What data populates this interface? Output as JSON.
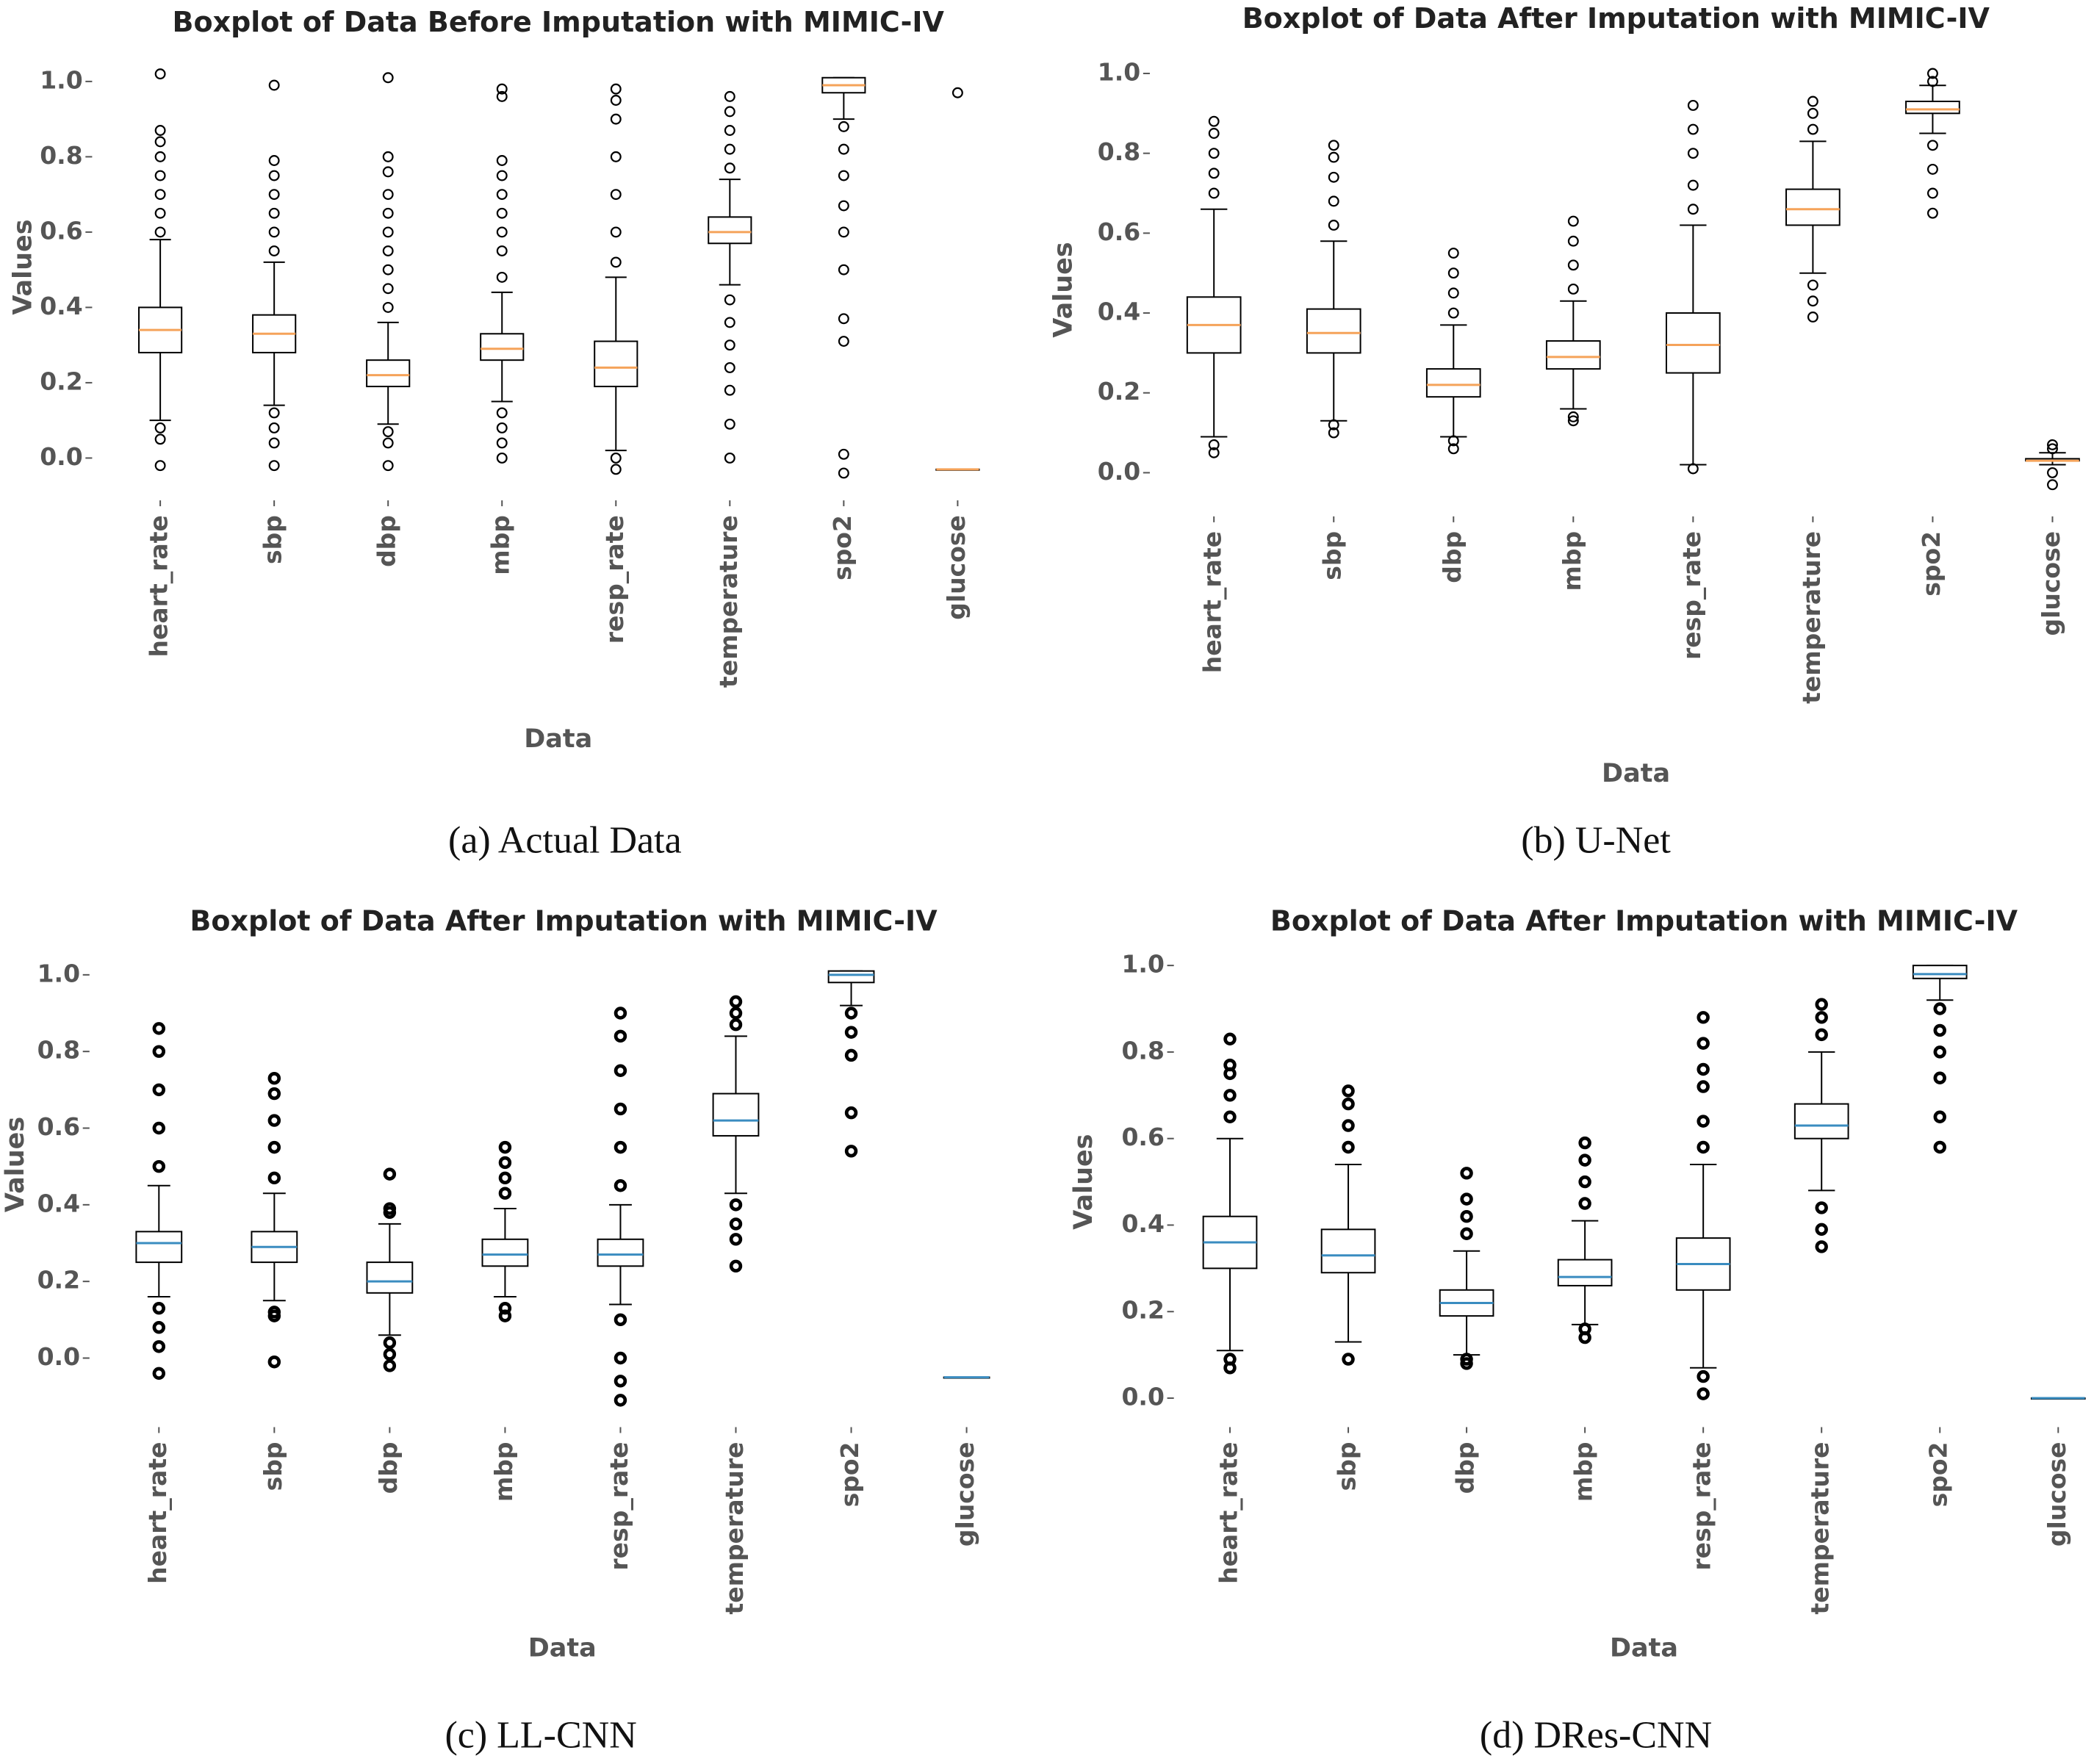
{
  "chart_data": [
    {
      "type": "box",
      "title": "Boxplot of Data Before Imputation with MIMIC-IV",
      "xlabel": "Data",
      "ylabel": "Values",
      "caption": "(a) Actual Data",
      "categories": [
        "heart_rate",
        "sbp",
        "dbp",
        "mbp",
        "resp_rate",
        "temperature",
        "spo2",
        "glucose"
      ],
      "whislo": [
        0.1,
        0.14,
        0.09,
        0.15,
        0.02,
        0.46,
        0.9,
        -0.03
      ],
      "q1": [
        0.28,
        0.28,
        0.19,
        0.26,
        0.19,
        0.57,
        0.97,
        -0.03
      ],
      "median": [
        0.34,
        0.33,
        0.22,
        0.29,
        0.24,
        0.6,
        0.99,
        -0.03
      ],
      "q3": [
        0.4,
        0.38,
        0.26,
        0.33,
        0.31,
        0.64,
        1.01,
        -0.03
      ],
      "whishi": [
        0.58,
        0.52,
        0.36,
        0.44,
        0.48,
        0.74,
        1.01,
        -0.03
      ],
      "fliers": [
        [
          0.6,
          0.65,
          0.7,
          0.75,
          0.8,
          0.84,
          0.87,
          1.02,
          0.08,
          0.05,
          -0.02
        ],
        [
          0.55,
          0.6,
          0.65,
          0.7,
          0.75,
          0.79,
          0.99,
          0.12,
          0.08,
          0.04,
          -0.02
        ],
        [
          0.4,
          0.45,
          0.5,
          0.55,
          0.6,
          0.65,
          0.7,
          0.76,
          0.8,
          1.01,
          0.07,
          0.04,
          -0.02
        ],
        [
          0.48,
          0.55,
          0.6,
          0.65,
          0.7,
          0.75,
          0.79,
          0.96,
          0.98,
          0.12,
          0.08,
          0.04,
          0.0
        ],
        [
          0.52,
          0.6,
          0.7,
          0.8,
          0.9,
          0.95,
          0.98,
          0.0,
          -0.03
        ],
        [
          0.77,
          0.82,
          0.87,
          0.92,
          0.96,
          0.42,
          0.36,
          0.3,
          0.24,
          0.18,
          0.09,
          0.0
        ],
        [
          0.88,
          0.82,
          0.75,
          0.67,
          0.6,
          0.5,
          0.37,
          0.31,
          0.01,
          -0.04
        ],
        [
          0.97
        ]
      ],
      "ylim": [
        -0.08,
        1.06
      ],
      "yticks": [
        {
          "value": 0,
          "label": "0.0"
        },
        0.2,
        0.4,
        0.6,
        0.8,
        {
          "value": 1,
          "label": "1.0"
        }
      ],
      "median_color": "#f5a35a",
      "box_color": "#000000"
    },
    {
      "type": "box",
      "title": "Boxplot of Data After Imputation with MIMIC-IV",
      "xlabel": "Data",
      "ylabel": "Values",
      "caption": "(b) U-Net",
      "categories": [
        "heart_rate",
        "sbp",
        "dbp",
        "mbp",
        "resp_rate",
        "temperature",
        "spo2",
        "glucose"
      ],
      "whislo": [
        0.09,
        0.13,
        0.09,
        0.16,
        0.02,
        0.5,
        0.85,
        0.02
      ],
      "q1": [
        0.3,
        0.3,
        0.19,
        0.26,
        0.25,
        0.62,
        0.9,
        0.03
      ],
      "median": [
        0.37,
        0.35,
        0.22,
        0.29,
        0.32,
        0.66,
        0.91,
        0.03
      ],
      "q3": [
        0.44,
        0.41,
        0.26,
        0.33,
        0.4,
        0.71,
        0.93,
        0.035
      ],
      "whishi": [
        0.66,
        0.58,
        0.37,
        0.43,
        0.62,
        0.83,
        0.97,
        0.05
      ],
      "fliers": [
        [
          0.7,
          0.75,
          0.8,
          0.85,
          0.88,
          0.07,
          0.05
        ],
        [
          0.62,
          0.68,
          0.74,
          0.79,
          0.82,
          0.12,
          0.1
        ],
        [
          0.4,
          0.45,
          0.5,
          0.55,
          0.08,
          0.06
        ],
        [
          0.46,
          0.52,
          0.58,
          0.63,
          0.14,
          0.13
        ],
        [
          0.66,
          0.72,
          0.8,
          0.86,
          0.92,
          0.01
        ],
        [
          0.86,
          0.9,
          0.93,
          0.47,
          0.43,
          0.39
        ],
        [
          0.98,
          1.0,
          0.82,
          0.76,
          0.7,
          0.65
        ],
        [
          0.06,
          0.07,
          0.0,
          -0.03
        ]
      ],
      "ylim": [
        -0.08,
        1.05
      ],
      "yticks": [
        {
          "value": 0,
          "label": "0.0"
        },
        0.2,
        0.4,
        0.6,
        0.8,
        {
          "value": 1,
          "label": "1.0"
        }
      ],
      "median_color": "#f5a35a",
      "box_color": "#000000"
    },
    {
      "type": "box",
      "title": "Boxplot of Data After Imputation with MIMIC-IV",
      "xlabel": "Data",
      "ylabel": "Values",
      "caption": "(c) LL-CNN",
      "categories": [
        "heart_rate",
        "sbp",
        "dbp",
        "mbp",
        "resp_rate",
        "temperature",
        "spo2",
        "glucose"
      ],
      "whislo": [
        0.16,
        0.15,
        0.06,
        0.16,
        0.14,
        0.43,
        0.92,
        -0.05
      ],
      "q1": [
        0.25,
        0.25,
        0.17,
        0.24,
        0.24,
        0.58,
        0.98,
        -0.05
      ],
      "median": [
        0.3,
        0.29,
        0.2,
        0.27,
        0.27,
        0.62,
        1.0,
        -0.05
      ],
      "q3": [
        0.33,
        0.33,
        0.25,
        0.31,
        0.31,
        0.69,
        1.01,
        -0.05
      ],
      "whishi": [
        0.45,
        0.43,
        0.35,
        0.39,
        0.4,
        0.84,
        1.01,
        -0.05
      ],
      "fliers": [
        [
          0.5,
          0.6,
          0.7,
          0.8,
          0.86,
          0.13,
          0.08,
          0.03,
          -0.04
        ],
        [
          0.47,
          0.55,
          0.62,
          0.69,
          0.73,
          0.12,
          0.11,
          -0.01
        ],
        [
          0.38,
          0.39,
          0.48,
          0.04,
          0.01,
          -0.02
        ],
        [
          0.43,
          0.47,
          0.51,
          0.55,
          0.13,
          0.11
        ],
        [
          0.45,
          0.55,
          0.65,
          0.75,
          0.84,
          0.9,
          0.1,
          0.0,
          -0.06,
          -0.11
        ],
        [
          0.87,
          0.9,
          0.93,
          0.4,
          0.35,
          0.31,
          0.24
        ],
        [
          0.9,
          0.85,
          0.79,
          0.64,
          0.54
        ],
        []
      ],
      "ylim": [
        -0.12,
        1.04
      ],
      "yticks": [
        {
          "value": 0,
          "label": "0.0"
        },
        0.2,
        0.4,
        0.6,
        0.8,
        {
          "value": 1,
          "label": "1.0"
        }
      ],
      "median_color": "#3a8cc0",
      "box_color": "#000000"
    },
    {
      "type": "box",
      "title": "Boxplot of Data After Imputation with MIMIC-IV",
      "xlabel": "Data",
      "ylabel": "Values",
      "caption": "(d) DRes-CNN",
      "categories": [
        "heart_rate",
        "sbp",
        "dbp",
        "mbp",
        "resp_rate",
        "temperature",
        "spo2",
        "glucose"
      ],
      "whislo": [
        0.11,
        0.13,
        0.1,
        0.17,
        0.07,
        0.48,
        0.92,
        0
      ],
      "q1": [
        0.3,
        0.29,
        0.19,
        0.26,
        0.25,
        0.6,
        0.97,
        0
      ],
      "median": [
        0.36,
        0.33,
        0.22,
        0.28,
        0.31,
        0.63,
        0.98,
        0
      ],
      "q3": [
        0.42,
        0.39,
        0.25,
        0.32,
        0.37,
        0.68,
        1.0,
        0
      ],
      "whishi": [
        0.6,
        0.54,
        0.34,
        0.41,
        0.54,
        0.8,
        1.0,
        0
      ],
      "fliers": [
        [
          0.65,
          0.7,
          0.75,
          0.77,
          0.83,
          0.09,
          0.07
        ],
        [
          0.58,
          0.63,
          0.68,
          0.71,
          0.09
        ],
        [
          0.38,
          0.42,
          0.46,
          0.52,
          0.09,
          0.08
        ],
        [
          0.45,
          0.5,
          0.55,
          0.59,
          0.16,
          0.14
        ],
        [
          0.58,
          0.64,
          0.72,
          0.76,
          0.82,
          0.88,
          0.05,
          0.01
        ],
        [
          0.84,
          0.88,
          0.91,
          0.44,
          0.39,
          0.35
        ],
        [
          0.9,
          0.85,
          0.8,
          0.74,
          0.65,
          0.58
        ],
        []
      ],
      "ylim": [
        -0.06,
        1.04
      ],
      "yticks": [
        {
          "value": 0,
          "label": "0.0"
        },
        0.2,
        0.4,
        0.6,
        0.8,
        {
          "value": 1,
          "label": "1.0"
        }
      ],
      "median_color": "#3a8cc0",
      "box_color": "#000000"
    }
  ]
}
